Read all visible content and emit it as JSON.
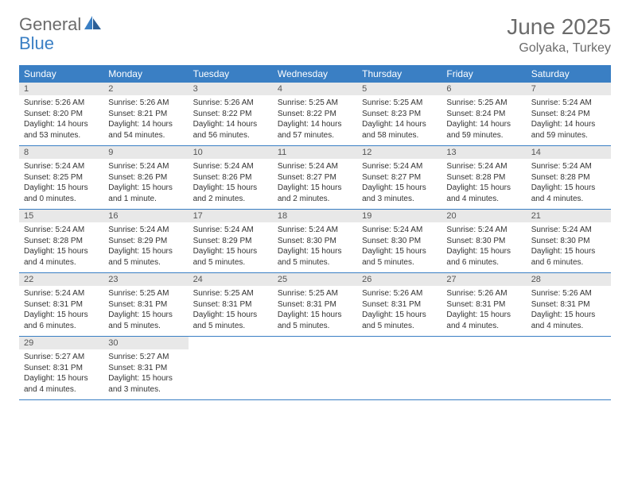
{
  "logo": {
    "text1": "General",
    "text2": "Blue"
  },
  "title": "June 2025",
  "location": "Golyaka, Turkey",
  "colors": {
    "header_bg": "#3a7fc4",
    "header_text": "#ffffff",
    "daynum_bg": "#e8e8e8",
    "border": "#3a7fc4",
    "title_color": "#6b6b6b"
  },
  "weekdays": [
    "Sunday",
    "Monday",
    "Tuesday",
    "Wednesday",
    "Thursday",
    "Friday",
    "Saturday"
  ],
  "days": [
    {
      "n": 1,
      "sunrise": "5:26 AM",
      "sunset": "8:20 PM",
      "daylight": "14 hours and 53 minutes."
    },
    {
      "n": 2,
      "sunrise": "5:26 AM",
      "sunset": "8:21 PM",
      "daylight": "14 hours and 54 minutes."
    },
    {
      "n": 3,
      "sunrise": "5:26 AM",
      "sunset": "8:22 PM",
      "daylight": "14 hours and 56 minutes."
    },
    {
      "n": 4,
      "sunrise": "5:25 AM",
      "sunset": "8:22 PM",
      "daylight": "14 hours and 57 minutes."
    },
    {
      "n": 5,
      "sunrise": "5:25 AM",
      "sunset": "8:23 PM",
      "daylight": "14 hours and 58 minutes."
    },
    {
      "n": 6,
      "sunrise": "5:25 AM",
      "sunset": "8:24 PM",
      "daylight": "14 hours and 59 minutes."
    },
    {
      "n": 7,
      "sunrise": "5:24 AM",
      "sunset": "8:24 PM",
      "daylight": "14 hours and 59 minutes."
    },
    {
      "n": 8,
      "sunrise": "5:24 AM",
      "sunset": "8:25 PM",
      "daylight": "15 hours and 0 minutes."
    },
    {
      "n": 9,
      "sunrise": "5:24 AM",
      "sunset": "8:26 PM",
      "daylight": "15 hours and 1 minute."
    },
    {
      "n": 10,
      "sunrise": "5:24 AM",
      "sunset": "8:26 PM",
      "daylight": "15 hours and 2 minutes."
    },
    {
      "n": 11,
      "sunrise": "5:24 AM",
      "sunset": "8:27 PM",
      "daylight": "15 hours and 2 minutes."
    },
    {
      "n": 12,
      "sunrise": "5:24 AM",
      "sunset": "8:27 PM",
      "daylight": "15 hours and 3 minutes."
    },
    {
      "n": 13,
      "sunrise": "5:24 AM",
      "sunset": "8:28 PM",
      "daylight": "15 hours and 4 minutes."
    },
    {
      "n": 14,
      "sunrise": "5:24 AM",
      "sunset": "8:28 PM",
      "daylight": "15 hours and 4 minutes."
    },
    {
      "n": 15,
      "sunrise": "5:24 AM",
      "sunset": "8:28 PM",
      "daylight": "15 hours and 4 minutes."
    },
    {
      "n": 16,
      "sunrise": "5:24 AM",
      "sunset": "8:29 PM",
      "daylight": "15 hours and 5 minutes."
    },
    {
      "n": 17,
      "sunrise": "5:24 AM",
      "sunset": "8:29 PM",
      "daylight": "15 hours and 5 minutes."
    },
    {
      "n": 18,
      "sunrise": "5:24 AM",
      "sunset": "8:30 PM",
      "daylight": "15 hours and 5 minutes."
    },
    {
      "n": 19,
      "sunrise": "5:24 AM",
      "sunset": "8:30 PM",
      "daylight": "15 hours and 5 minutes."
    },
    {
      "n": 20,
      "sunrise": "5:24 AM",
      "sunset": "8:30 PM",
      "daylight": "15 hours and 6 minutes."
    },
    {
      "n": 21,
      "sunrise": "5:24 AM",
      "sunset": "8:30 PM",
      "daylight": "15 hours and 6 minutes."
    },
    {
      "n": 22,
      "sunrise": "5:24 AM",
      "sunset": "8:31 PM",
      "daylight": "15 hours and 6 minutes."
    },
    {
      "n": 23,
      "sunrise": "5:25 AM",
      "sunset": "8:31 PM",
      "daylight": "15 hours and 5 minutes."
    },
    {
      "n": 24,
      "sunrise": "5:25 AM",
      "sunset": "8:31 PM",
      "daylight": "15 hours and 5 minutes."
    },
    {
      "n": 25,
      "sunrise": "5:25 AM",
      "sunset": "8:31 PM",
      "daylight": "15 hours and 5 minutes."
    },
    {
      "n": 26,
      "sunrise": "5:26 AM",
      "sunset": "8:31 PM",
      "daylight": "15 hours and 5 minutes."
    },
    {
      "n": 27,
      "sunrise": "5:26 AM",
      "sunset": "8:31 PM",
      "daylight": "15 hours and 4 minutes."
    },
    {
      "n": 28,
      "sunrise": "5:26 AM",
      "sunset": "8:31 PM",
      "daylight": "15 hours and 4 minutes."
    },
    {
      "n": 29,
      "sunrise": "5:27 AM",
      "sunset": "8:31 PM",
      "daylight": "15 hours and 4 minutes."
    },
    {
      "n": 30,
      "sunrise": "5:27 AM",
      "sunset": "8:31 PM",
      "daylight": "15 hours and 3 minutes."
    }
  ],
  "labels": {
    "sunrise": "Sunrise:",
    "sunset": "Sunset:",
    "daylight": "Daylight:"
  },
  "first_weekday_offset": 0,
  "typography": {
    "title_fontsize": 28,
    "location_fontsize": 16,
    "header_fontsize": 12,
    "body_fontsize": 10
  }
}
